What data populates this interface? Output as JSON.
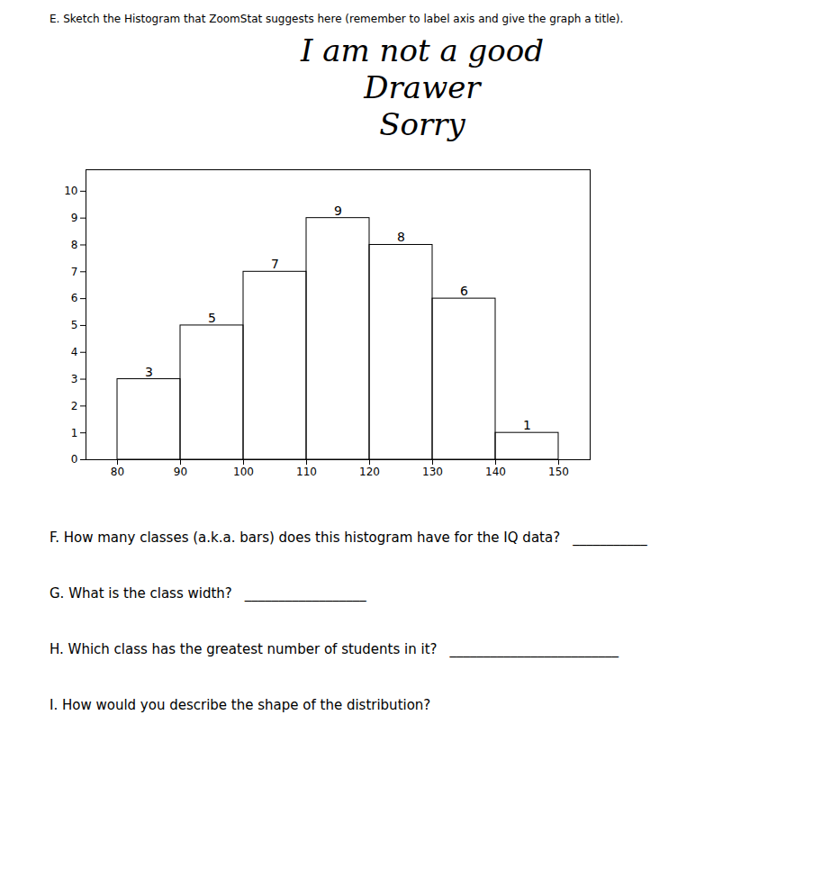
{
  "chart_data": {
    "type": "histogram",
    "title": [
      "I am not a good",
      "Drawer",
      "Sorry"
    ],
    "bins": [
      80,
      90,
      100,
      110,
      120,
      130,
      140,
      150
    ],
    "values": [
      3,
      5,
      7,
      9,
      8,
      6,
      1
    ],
    "xlim": [
      75,
      155
    ],
    "ylim": [
      0,
      10.8
    ],
    "xticks": [
      80,
      90,
      100,
      110,
      120,
      130,
      140,
      150
    ],
    "yticks": [
      0,
      1,
      2,
      3,
      4,
      5,
      6,
      7,
      8,
      9,
      10
    ],
    "data_labels": true,
    "grid": false,
    "annotations": [
      "E. Sketch the Histogram that ZoomStat suggests here (remember to label axis and give the graph a title).",
      "F. How many classes (a.k.a. bars) does this histogram have for the IQ data?",
      "___________",
      "G. What is the class width?",
      "__________________",
      "H. Which class has the greatest number of students in it?",
      "_________________________",
      "I. How would you describe the shape of the distribution?"
    ]
  }
}
